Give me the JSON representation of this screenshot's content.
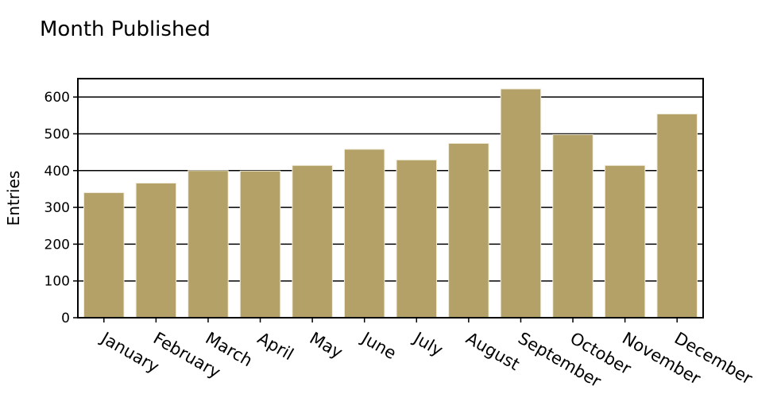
{
  "chart_data": {
    "type": "bar",
    "title": "Month Published",
    "xlabel": "",
    "ylabel": "Entries",
    "categories": [
      "January",
      "February",
      "March",
      "April",
      "May",
      "June",
      "July",
      "August",
      "September",
      "October",
      "November",
      "December"
    ],
    "values": [
      340,
      366,
      400,
      399,
      414,
      458,
      429,
      474,
      622,
      498,
      414,
      554
    ],
    "ylim": [
      0,
      650
    ],
    "yticks": [
      0,
      100,
      200,
      300,
      400,
      500,
      600
    ],
    "grid": true,
    "bar_color": "#b3a167",
    "bar_edge_color": "#f0ecdc"
  }
}
